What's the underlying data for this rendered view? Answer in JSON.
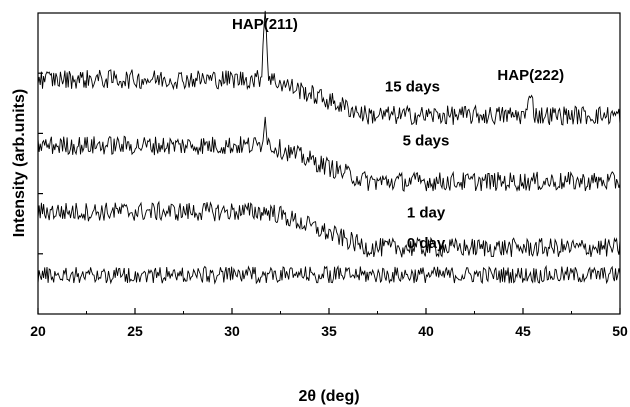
{
  "chart_data": {
    "type": "line",
    "xlabel": "2θ (deg)",
    "ylabel": "Intensity (arb.units)",
    "xlim": [
      20,
      50
    ],
    "ylim": [
      0,
      10
    ],
    "x_ticks": [
      "20",
      "25",
      "30",
      "35",
      "40",
      "45",
      "50"
    ],
    "grid": false,
    "series": [
      {
        "name": "0 day",
        "baseline": 1.3,
        "noise": 0.28,
        "peaks": []
      },
      {
        "name": "1 day",
        "baseline": 3.4,
        "noise": 0.32,
        "slope_end": 2.2,
        "peaks": []
      },
      {
        "name": "5 days",
        "baseline": 5.6,
        "noise": 0.32,
        "slope_end": 4.4,
        "peaks": [
          {
            "x": 31.7,
            "height": 0.9
          }
        ]
      },
      {
        "name": "15 days",
        "baseline": 7.8,
        "noise": 0.32,
        "slope_end": 6.6,
        "peaks": [
          {
            "x": 31.7,
            "height": 2.3
          },
          {
            "x": 45.4,
            "height": 0.9
          }
        ]
      }
    ],
    "annotations": [
      {
        "text": "HAP(211)",
        "x": 31.7
      },
      {
        "text": "HAP(222)",
        "x": 45.4
      }
    ]
  }
}
